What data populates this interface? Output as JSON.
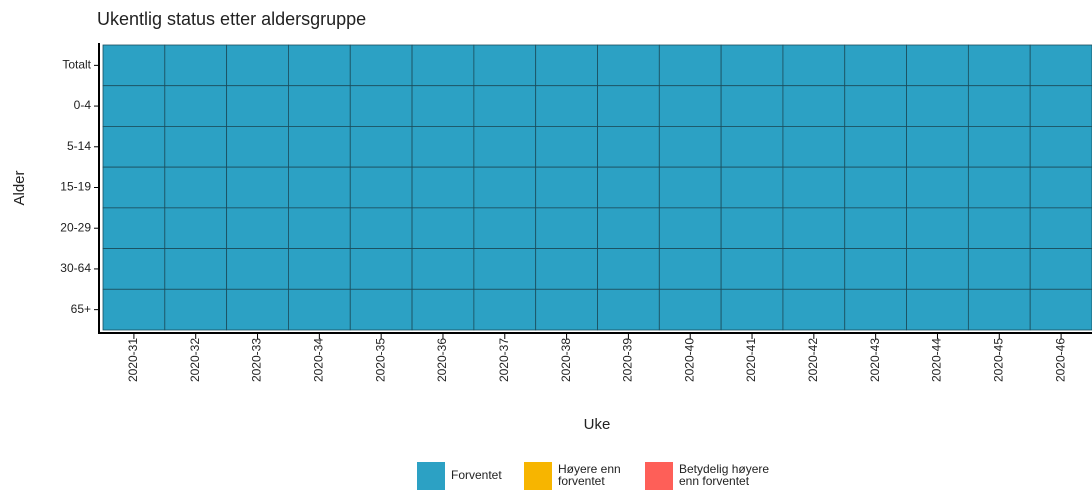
{
  "chart_data": {
    "type": "heatmap",
    "title": "Ukentlig status etter aldersgruppe",
    "x_label": "Uke",
    "y_label": "Alder",
    "categories": [
      "2020-31",
      "2020-32",
      "2020-33",
      "2020-34",
      "2020-35",
      "2020-36",
      "2020-37",
      "2020-38",
      "2020-39",
      "2020-40",
      "2020-41",
      "2020-42",
      "2020-43",
      "2020-44",
      "2020-45",
      "2020-46"
    ],
    "rows": [
      "Totalt",
      "0-4",
      "5-14",
      "15-19",
      "20-29",
      "30-64",
      "65+"
    ],
    "levels": [
      {
        "name": [
          "Forventet"
        ],
        "color": "#2ca1c4"
      },
      {
        "name": [
          "Høyere enn",
          "forventet"
        ],
        "color": "#f7b500"
      },
      {
        "name": [
          "Betydelig høyere",
          "enn forventet"
        ],
        "color": "#fe5f58"
      }
    ],
    "values": [
      [
        "Forventet",
        "Forventet",
        "Forventet",
        "Forventet",
        "Forventet",
        "Forventet",
        "Forventet",
        "Forventet",
        "Forventet",
        "Forventet",
        "Forventet",
        "Forventet",
        "Forventet",
        "Forventet",
        "Forventet",
        "Forventet"
      ],
      [
        "Forventet",
        "Forventet",
        "Forventet",
        "Forventet",
        "Forventet",
        "Forventet",
        "Forventet",
        "Forventet",
        "Forventet",
        "Forventet",
        "Forventet",
        "Forventet",
        "Forventet",
        "Forventet",
        "Forventet",
        "Forventet"
      ],
      [
        "Forventet",
        "Forventet",
        "Forventet",
        "Forventet",
        "Forventet",
        "Forventet",
        "Forventet",
        "Forventet",
        "Forventet",
        "Forventet",
        "Forventet",
        "Forventet",
        "Forventet",
        "Forventet",
        "Forventet",
        "Forventet"
      ],
      [
        "Forventet",
        "Forventet",
        "Forventet",
        "Forventet",
        "Forventet",
        "Forventet",
        "Forventet",
        "Forventet",
        "Forventet",
        "Forventet",
        "Forventet",
        "Forventet",
        "Forventet",
        "Forventet",
        "Forventet",
        "Forventet"
      ],
      [
        "Forventet",
        "Forventet",
        "Forventet",
        "Forventet",
        "Forventet",
        "Forventet",
        "Forventet",
        "Forventet",
        "Forventet",
        "Forventet",
        "Forventet",
        "Forventet",
        "Forventet",
        "Forventet",
        "Forventet",
        "Forventet"
      ],
      [
        "Forventet",
        "Forventet",
        "Forventet",
        "Forventet",
        "Forventet",
        "Forventet",
        "Forventet",
        "Forventet",
        "Forventet",
        "Forventet",
        "Forventet",
        "Forventet",
        "Forventet",
        "Forventet",
        "Forventet",
        "Forventet"
      ],
      [
        "Forventet",
        "Forventet",
        "Forventet",
        "Forventet",
        "Forventet",
        "Forventet",
        "Forventet",
        "Forventet",
        "Forventet",
        "Forventet",
        "Forventet",
        "Forventet",
        "Forventet",
        "Forventet",
        "Forventet",
        "Forventet"
      ]
    ]
  }
}
